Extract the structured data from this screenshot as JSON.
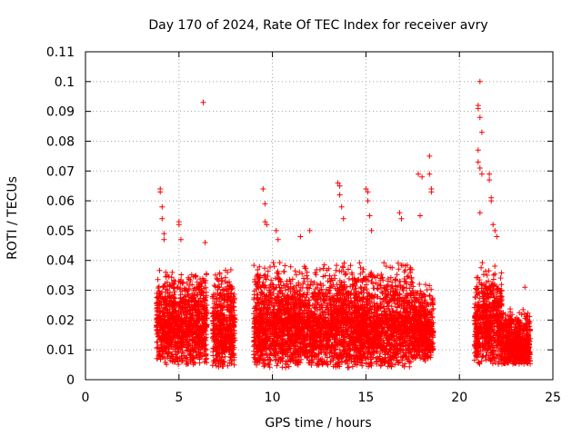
{
  "chart_data": {
    "type": "scatter",
    "title": "Day 170 of 2024, Rate Of TEC Index for receiver avry",
    "xlabel": "GPS time / hours",
    "ylabel": "ROTI / TECUs",
    "xlim": [
      0,
      25
    ],
    "ylim": [
      0,
      0.11
    ],
    "x_ticks": [
      0,
      5,
      10,
      15,
      20,
      25
    ],
    "y_ticks": [
      0,
      0.01,
      0.02,
      0.03,
      0.04,
      0.05,
      0.06,
      0.07,
      0.08,
      0.09,
      0.1,
      0.11
    ],
    "x_tick_labels": [
      "0",
      "5",
      "10",
      "15",
      "20",
      "25"
    ],
    "y_tick_labels": [
      "0",
      "0.01",
      "0.02",
      "0.03",
      "0.04",
      "0.05",
      "0.06",
      "0.07",
      "0.08",
      "0.09",
      "0.1",
      "0.11"
    ],
    "grid": true,
    "marker": "+",
    "marker_color": "#ff0000",
    "series": [
      {
        "name": "ROTI",
        "segments": [
          {
            "x_range": [
              3.8,
              6.5
            ],
            "base": [
              0.005,
              0.02
            ],
            "spread": 0.018
          },
          {
            "x_range": [
              6.8,
              8.0
            ],
            "base": [
              0.004,
              0.018
            ],
            "spread": 0.02
          },
          {
            "x_range": [
              9.0,
              17.5
            ],
            "base": [
              0.004,
              0.02
            ],
            "spread": 0.02
          },
          {
            "x_range": [
              17.5,
              18.6
            ],
            "base": [
              0.006,
              0.018
            ],
            "spread": 0.015
          },
          {
            "x_range": [
              20.8,
              22.3
            ],
            "base": [
              0.005,
              0.02
            ],
            "spread": 0.02
          },
          {
            "x_range": [
              22.3,
              23.8
            ],
            "base": [
              0.005,
              0.012
            ],
            "spread": 0.012
          }
        ],
        "outliers": [
          [
            4.0,
            0.064
          ],
          [
            4.0,
            0.063
          ],
          [
            4.1,
            0.058
          ],
          [
            4.1,
            0.054
          ],
          [
            4.2,
            0.049
          ],
          [
            4.2,
            0.047
          ],
          [
            5.0,
            0.053
          ],
          [
            5.0,
            0.052
          ],
          [
            5.1,
            0.047
          ],
          [
            6.3,
            0.093
          ],
          [
            6.4,
            0.046
          ],
          [
            9.5,
            0.064
          ],
          [
            9.6,
            0.059
          ],
          [
            9.6,
            0.053
          ],
          [
            9.7,
            0.052
          ],
          [
            10.2,
            0.05
          ],
          [
            10.3,
            0.047
          ],
          [
            11.5,
            0.048
          ],
          [
            12.0,
            0.05
          ],
          [
            13.5,
            0.066
          ],
          [
            13.6,
            0.065
          ],
          [
            13.6,
            0.062
          ],
          [
            13.7,
            0.058
          ],
          [
            13.8,
            0.054
          ],
          [
            15.0,
            0.064
          ],
          [
            15.1,
            0.063
          ],
          [
            15.1,
            0.06
          ],
          [
            15.2,
            0.055
          ],
          [
            15.3,
            0.05
          ],
          [
            16.8,
            0.056
          ],
          [
            16.9,
            0.054
          ],
          [
            17.8,
            0.069
          ],
          [
            18.0,
            0.068
          ],
          [
            18.4,
            0.075
          ],
          [
            18.4,
            0.069
          ],
          [
            18.5,
            0.064
          ],
          [
            18.5,
            0.063
          ],
          [
            17.9,
            0.055
          ],
          [
            21.1,
            0.1
          ],
          [
            21.0,
            0.092
          ],
          [
            21.0,
            0.091
          ],
          [
            21.1,
            0.088
          ],
          [
            21.2,
            0.083
          ],
          [
            21.0,
            0.077
          ],
          [
            21.0,
            0.073
          ],
          [
            21.1,
            0.071
          ],
          [
            21.2,
            0.069
          ],
          [
            21.6,
            0.069
          ],
          [
            21.6,
            0.067
          ],
          [
            21.7,
            0.061
          ],
          [
            21.7,
            0.06
          ],
          [
            21.1,
            0.056
          ],
          [
            21.8,
            0.052
          ],
          [
            21.9,
            0.05
          ],
          [
            22.0,
            0.048
          ],
          [
            23.5,
            0.031
          ]
        ]
      }
    ]
  }
}
